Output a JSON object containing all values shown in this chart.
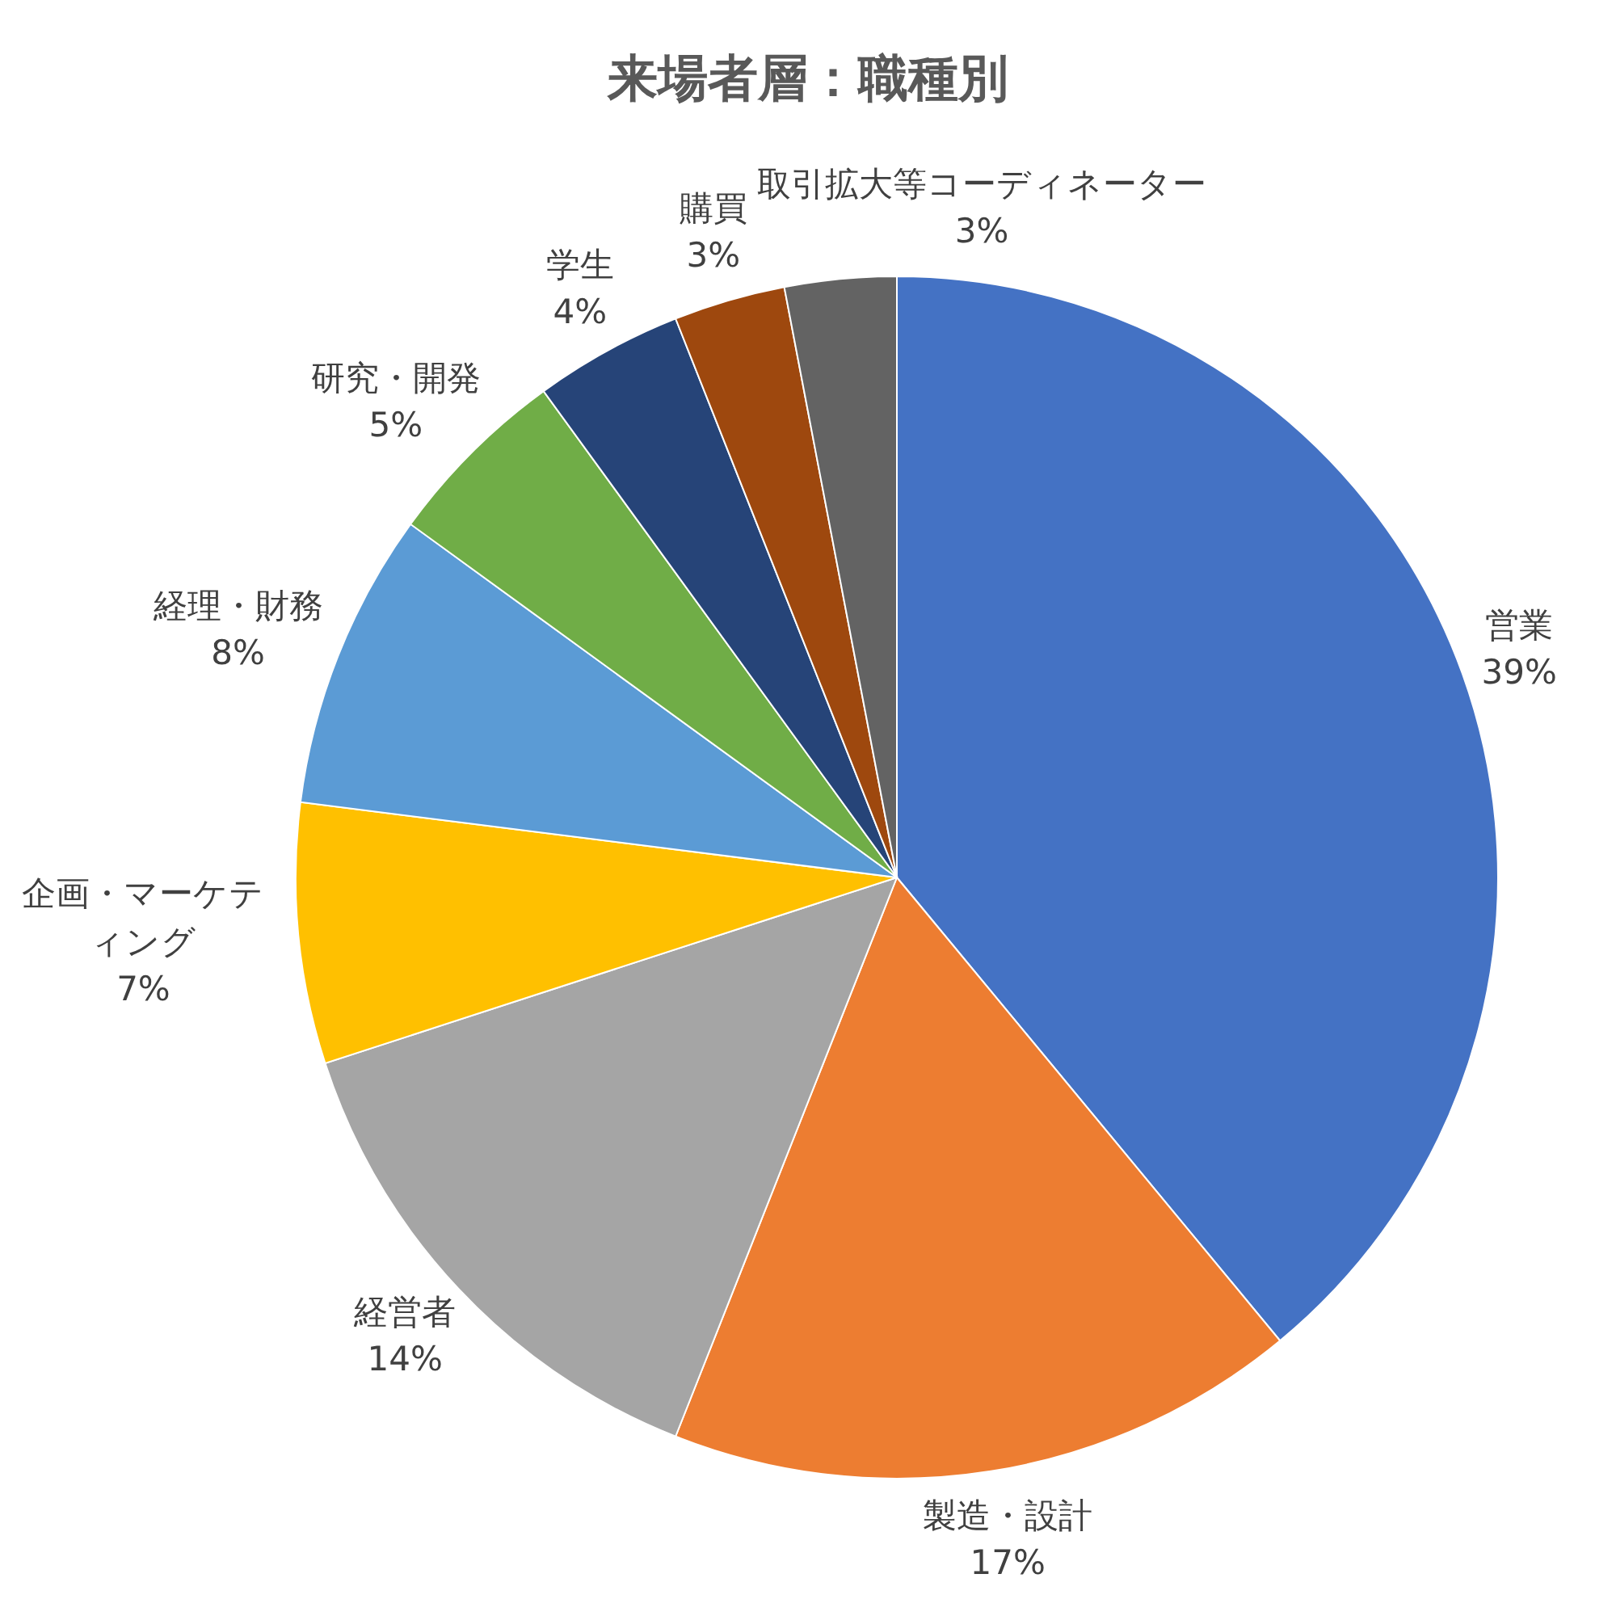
{
  "chart_data": {
    "type": "pie",
    "title": "来場者層：職種別",
    "categories": [
      "営業",
      "製造・設計",
      "経営者",
      "企画・マーケティング",
      "経理・財務",
      "研究・開発",
      "学生",
      "購買",
      "取引拡大等コーディネーター"
    ],
    "values": [
      39,
      17,
      14,
      7,
      8,
      5,
      4,
      3,
      3
    ],
    "colors": [
      "#4472c4",
      "#ed7d31",
      "#a5a5a5",
      "#ffc000",
      "#5b9bd5",
      "#70ad47",
      "#264478",
      "#9e480e",
      "#636363"
    ],
    "value_labels": [
      "39%",
      "17%",
      "14%",
      "7%",
      "8%",
      "5%",
      "4%",
      "3%",
      "3%"
    ]
  }
}
